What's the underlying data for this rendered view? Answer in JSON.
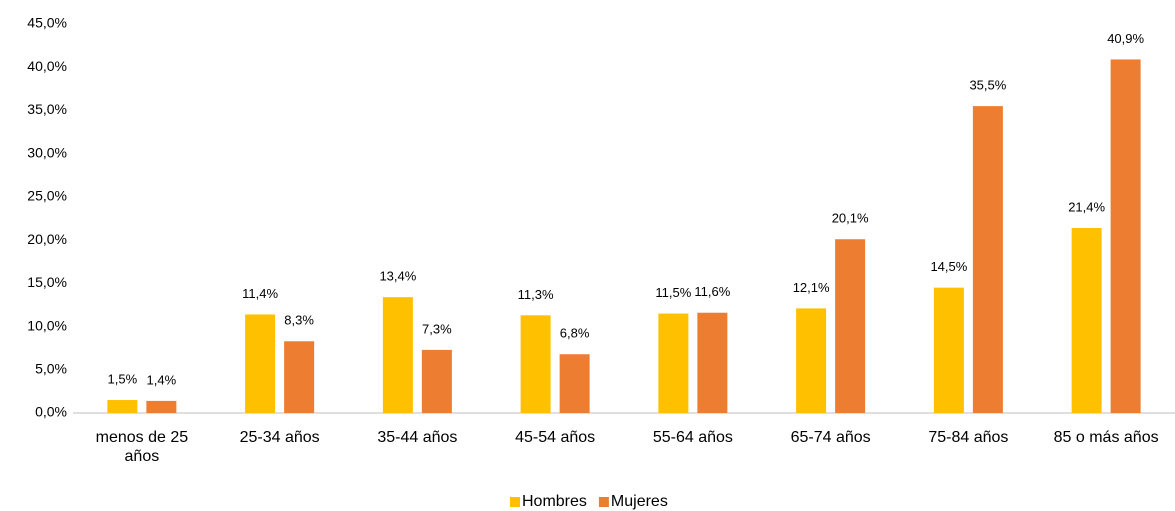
{
  "chart_data": {
    "type": "bar",
    "categories": [
      "menos de 25 años",
      "25-34 años",
      "35-44 años",
      "45-54 años",
      "55-64 años",
      "65-74 años",
      "75-84 años",
      "85 o más años"
    ],
    "series": [
      {
        "name": "Hombres",
        "color": "#FFC000",
        "values": [
          1.5,
          11.4,
          13.4,
          11.3,
          11.5,
          12.1,
          14.5,
          21.4
        ],
        "value_labels": [
          "1,5%",
          "11,4%",
          "13,4%",
          "11,3%",
          "11,5%",
          "12,1%",
          "14,5%",
          "21,4%"
        ]
      },
      {
        "name": "Mujeres",
        "color": "#ED7D31",
        "values": [
          1.4,
          8.3,
          7.3,
          6.8,
          11.6,
          20.1,
          35.5,
          40.9
        ],
        "value_labels": [
          "1,4%",
          "8,3%",
          "7,3%",
          "6,8%",
          "11,6%",
          "20,1%",
          "35,5%",
          "40,9%"
        ]
      }
    ],
    "ylim": [
      0,
      45
    ],
    "yticks": [
      {
        "value": 0,
        "label": "0,0%"
      },
      {
        "value": 5,
        "label": "5,0%"
      },
      {
        "value": 10,
        "label": "10,0%"
      },
      {
        "value": 15,
        "label": "15,0%"
      },
      {
        "value": 20,
        "label": "20,0%"
      },
      {
        "value": 25,
        "label": "25,0%"
      },
      {
        "value": 30,
        "label": "30,0%"
      },
      {
        "value": 35,
        "label": "35,0%"
      },
      {
        "value": 40,
        "label": "40,0%"
      },
      {
        "value": 45,
        "label": "45,0%"
      }
    ],
    "grid": false,
    "legend": "bottom"
  }
}
